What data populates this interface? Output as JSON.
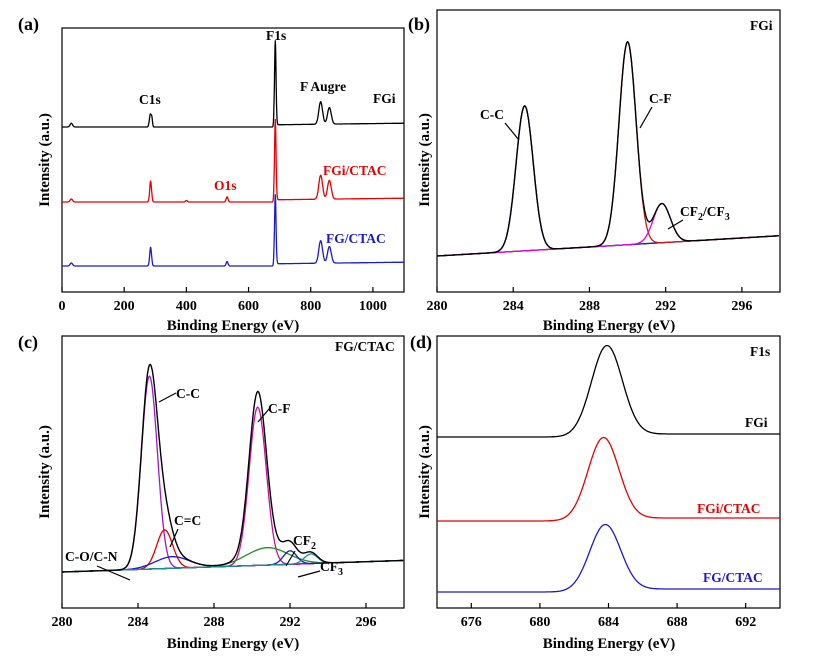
{
  "chart_data": [
    {
      "panel": "(a)",
      "type": "line",
      "xlabel": "Binding Energy (eV)",
      "ylabel": "Intensity (a.u.)",
      "xlim": [
        0,
        1100
      ],
      "xticks": [
        0,
        200,
        400,
        600,
        800,
        1000
      ],
      "y_ticks_shown": false,
      "series": [
        {
          "name": "FGi",
          "color": "#000000",
          "offset": 2.0,
          "peaks": [
            {
              "x": 30,
              "h": 0.05,
              "w": 4
            },
            {
              "x": 284,
              "h": 0.17,
              "w": 3
            },
            {
              "x": 289,
              "h": 0.1,
              "w": 2
            },
            {
              "x": 686,
              "h": 1.15,
              "w": 2.5
            },
            {
              "x": 832,
              "h": 0.3,
              "w": 6
            },
            {
              "x": 860,
              "h": 0.22,
              "w": 6
            }
          ]
        },
        {
          "name": "FGi/CTAC",
          "color": "#e60000",
          "offset": 1.0,
          "peaks": [
            {
              "x": 30,
              "h": 0.04,
              "w": 4
            },
            {
              "x": 285,
              "h": 0.28,
              "w": 3
            },
            {
              "x": 400,
              "h": 0.02,
              "w": 3
            },
            {
              "x": 531,
              "h": 0.07,
              "w": 3
            },
            {
              "x": 686,
              "h": 1.1,
              "w": 2.5
            },
            {
              "x": 832,
              "h": 0.32,
              "w": 6
            },
            {
              "x": 860,
              "h": 0.25,
              "w": 6
            }
          ]
        },
        {
          "name": "FG/CTAC",
          "color": "#1a1acc",
          "offset": 0.0,
          "peaks": [
            {
              "x": 30,
              "h": 0.04,
              "w": 4
            },
            {
              "x": 285,
              "h": 0.25,
              "w": 3
            },
            {
              "x": 531,
              "h": 0.06,
              "w": 3
            },
            {
              "x": 686,
              "h": 0.95,
              "w": 2.5
            },
            {
              "x": 832,
              "h": 0.3,
              "w": 6
            },
            {
              "x": 860,
              "h": 0.22,
              "w": 6
            }
          ]
        }
      ],
      "annotations": [
        "C1s",
        "F1s",
        "F Augre",
        "O1s",
        "FGi",
        "FGi/CTAC",
        "FG/CTAC"
      ]
    },
    {
      "panel": "(b)",
      "type": "line",
      "title": "FGi",
      "xlabel": "Binding Energy (eV)",
      "ylabel": "Intensity (a.u.)",
      "xlim": [
        280,
        298
      ],
      "xticks": [
        280,
        284,
        288,
        292,
        296
      ],
      "y_ticks_shown": false,
      "background": {
        "color": "#1a8f1a",
        "from": 0.0,
        "to": 0.14
      },
      "components": [
        {
          "name": "C-C",
          "color": "#1a1acc",
          "center": 284.6,
          "amplitude": 1.0,
          "sigma": 0.45
        },
        {
          "name": "C-F",
          "color": "#cc1a1a",
          "center": 290.0,
          "amplitude": 1.4,
          "sigma": 0.45
        },
        {
          "name": "CF2/CF3",
          "color": "#e000e0",
          "center": 291.8,
          "amplitude": 0.27,
          "sigma": 0.45
        }
      ],
      "envelope_color": "#000000",
      "annotations": [
        "C-C",
        "C-F",
        "CF",
        "2",
        "/CF",
        "3",
        "FGi"
      ]
    },
    {
      "panel": "(c)",
      "type": "line",
      "title": "FG/CTAC",
      "xlabel": "Binding Energy (eV)",
      "ylabel": "Intensity (a.u.)",
      "xlim": [
        280,
        298
      ],
      "xticks": [
        280,
        284,
        288,
        292,
        296
      ],
      "y_ticks_shown": false,
      "background": {
        "color": "#8b1a1a",
        "from": 0.0,
        "to": 0.06
      },
      "components": [
        {
          "name": "C-C",
          "color": "#9c1ac8",
          "center": 284.6,
          "amplitude": 1.0,
          "sigma": 0.42
        },
        {
          "name": "C=C",
          "color": "#e60000",
          "center": 285.4,
          "amplitude": 0.2,
          "sigma": 0.42
        },
        {
          "name": "C-O/C-N",
          "color": "#1a1acc",
          "center": 285.8,
          "amplitude": 0.06,
          "sigma": 0.9
        },
        {
          "name": "C-F",
          "color": "#c8109e",
          "center": 290.3,
          "amplitude": 0.82,
          "sigma": 0.45
        },
        {
          "name": "green",
          "color": "#1a8f1a",
          "center": 290.8,
          "amplitude": 0.09,
          "sigma": 1.1
        },
        {
          "name": "CF2",
          "color": "#1a1acc",
          "center": 292.0,
          "amplitude": 0.07,
          "sigma": 0.35
        },
        {
          "name": "CF3",
          "color": "#1a8f8f",
          "center": 293.1,
          "amplitude": 0.05,
          "sigma": 0.35
        }
      ],
      "envelope_color": "#000000",
      "annotations": [
        "C-C",
        "C=C",
        "C-O/C-N",
        "C-F",
        "CF",
        "2",
        "CF",
        "3",
        "FG/CTAC"
      ]
    },
    {
      "panel": "(d)",
      "type": "line",
      "title": "F1s",
      "xlabel": "Binding Energy (eV)",
      "ylabel": "Intensity (a.u.)",
      "xlim": [
        674,
        694
      ],
      "xticks": [
        676,
        680,
        684,
        688,
        692
      ],
      "y_ticks_shown": false,
      "series": [
        {
          "name": "FGi",
          "color": "#000000",
          "offset": 2.0,
          "center": 683.9,
          "amplitude": 0.9,
          "sigma": 0.9
        },
        {
          "name": "FGi/CTAC",
          "color": "#e60000",
          "offset": 1.0,
          "center": 683.7,
          "amplitude": 0.82,
          "sigma": 0.9
        },
        {
          "name": "FG/CTAC",
          "color": "#1a1acc",
          "offset": 0.0,
          "center": 683.8,
          "amplitude": 0.66,
          "sigma": 0.9
        }
      ],
      "annotations": [
        "F1s",
        "FGi",
        "FGi/CTAC",
        "FG/CTAC"
      ]
    }
  ]
}
